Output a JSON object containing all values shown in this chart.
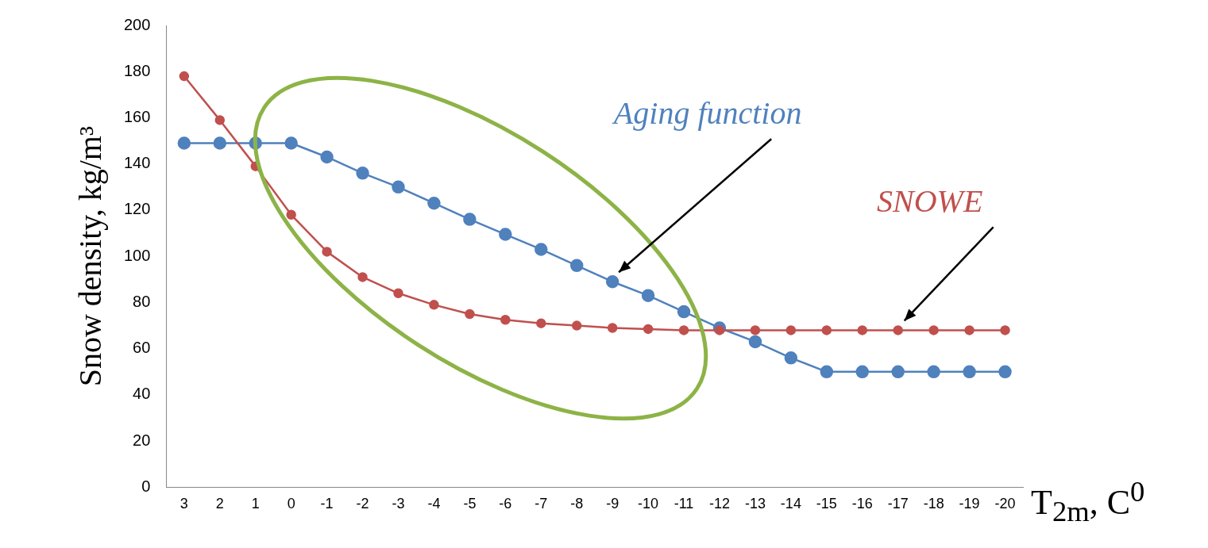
{
  "chart_data": {
    "type": "line",
    "xlabel": "T$_{2m}$, C$^{0}$",
    "ylabel": "Snow density, kg/m³",
    "categories": [
      "3",
      "2",
      "1",
      "0",
      "-1",
      "-2",
      "-3",
      "-4",
      "-5",
      "-6",
      "-7",
      "-8",
      "-9",
      "-10",
      "-11",
      "-12",
      "-13",
      "-14",
      "-15",
      "-16",
      "-17",
      "-18",
      "-19",
      "-20"
    ],
    "series": [
      {
        "name": "Aging function",
        "color": "#4f81bd",
        "values": [
          149,
          149,
          149,
          149,
          143,
          136,
          130,
          123,
          116,
          109.5,
          103,
          96,
          89,
          83,
          76,
          69,
          63,
          56,
          50,
          50,
          50,
          50,
          50,
          50
        ]
      },
      {
        "name": "SNOWE",
        "color": "#c0504d",
        "values": [
          178,
          159,
          139,
          118,
          102,
          91,
          84,
          79,
          75,
          72.5,
          71,
          70,
          69,
          68.5,
          68,
          68,
          68,
          68,
          68,
          68,
          68,
          68,
          68,
          68
        ]
      }
    ],
    "ylim": [
      0,
      200
    ],
    "yticks": [
      0,
      20,
      40,
      60,
      80,
      100,
      120,
      140,
      160,
      180,
      200
    ],
    "grid": false,
    "legend": false,
    "marker": "circle",
    "line_style": "solid"
  }
}
